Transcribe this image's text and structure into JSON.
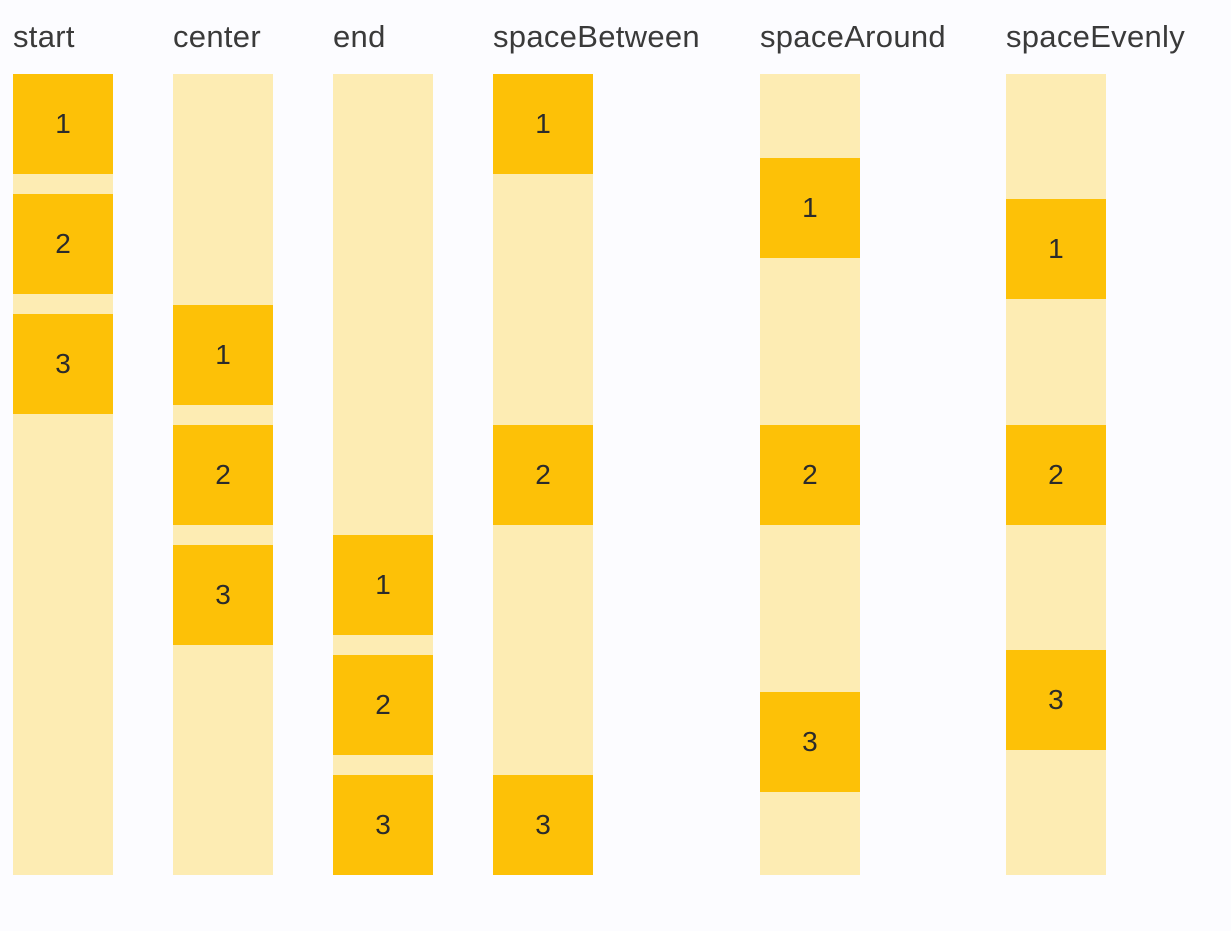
{
  "page": {
    "background_color": "#fcfcff"
  },
  "palette": {
    "item_color": "#fdc107",
    "track_color": "#fdecb3",
    "label_color": "#3a3a3a",
    "number_color": "#2b2b2b"
  },
  "alignment_demo": {
    "columns": [
      {
        "label": "start",
        "items": [
          "1",
          "2",
          "3"
        ]
      },
      {
        "label": "center",
        "items": [
          "1",
          "2",
          "3"
        ]
      },
      {
        "label": "end",
        "items": [
          "1",
          "2",
          "3"
        ]
      },
      {
        "label": "spaceBetween",
        "items": [
          "1",
          "2",
          "3"
        ]
      },
      {
        "label": "spaceAround",
        "items": [
          "1",
          "2",
          "3"
        ]
      },
      {
        "label": "spaceEvenly",
        "items": [
          "1",
          "2",
          "3"
        ]
      }
    ]
  }
}
